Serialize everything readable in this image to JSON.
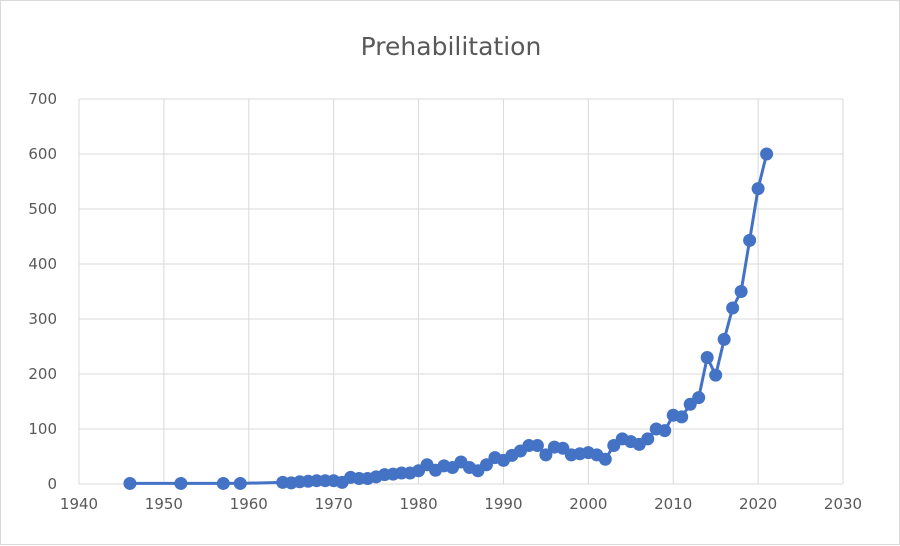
{
  "chart_data": {
    "type": "line",
    "title": "Prehabilitation",
    "xlabel": "",
    "ylabel": "",
    "xlim": [
      1940,
      2030
    ],
    "ylim": [
      0,
      700
    ],
    "xticks": [
      "1940",
      "1950",
      "1960",
      "1970",
      "1980",
      "1990",
      "2000",
      "2010",
      "2020",
      "2030"
    ],
    "yticks": [
      "0",
      "100",
      "200",
      "300",
      "400",
      "500",
      "600",
      "700"
    ],
    "grid": true,
    "legend": "none",
    "colors": {
      "series": "#4472c4",
      "grid": "#d9d9d9",
      "text": "#595959"
    },
    "series": [
      {
        "x": [
          1946,
          1952,
          1957,
          1959,
          1964,
          1965,
          1966,
          1967,
          1968,
          1969,
          1970,
          1971,
          1972,
          1973,
          1974,
          1975,
          1976,
          1977,
          1978,
          1979,
          1980,
          1981,
          1982,
          1983,
          1984,
          1985,
          1986,
          1987,
          1988,
          1989,
          1990,
          1991,
          1992,
          1993,
          1994,
          1995,
          1996,
          1997,
          1998,
          1999,
          2000,
          2001,
          2002,
          2003,
          2004,
          2005,
          2006,
          2007,
          2008,
          2009,
          2010,
          2011,
          2012,
          2013,
          2014,
          2015,
          2016,
          2017,
          2018,
          2019,
          2020,
          2021
        ],
        "y": [
          1,
          1,
          1,
          1,
          3,
          2,
          4,
          5,
          6,
          6,
          6,
          3,
          12,
          10,
          10,
          13,
          17,
          18,
          20,
          20,
          24,
          35,
          25,
          33,
          30,
          40,
          30,
          24,
          35,
          48,
          43,
          52,
          60,
          70,
          70,
          53,
          67,
          65,
          53,
          55,
          57,
          53,
          45,
          70,
          82,
          77,
          72,
          82,
          100,
          97,
          125,
          122,
          145,
          157,
          230,
          198,
          263,
          320,
          350,
          443,
          537,
          600
        ]
      }
    ]
  }
}
